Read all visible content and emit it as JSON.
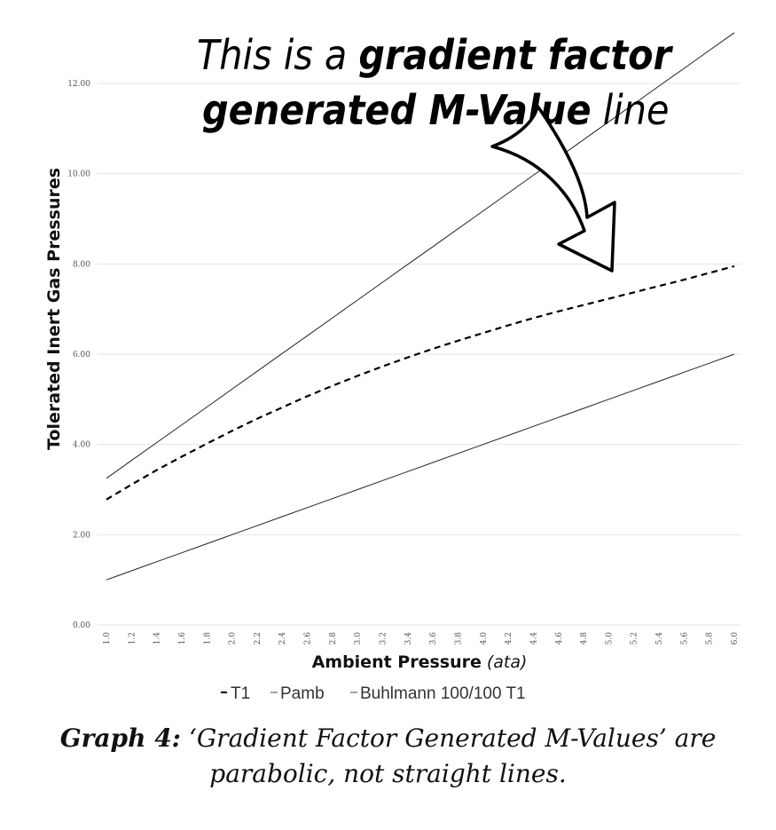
{
  "chart_data": {
    "type": "line",
    "x": [
      1.0,
      1.2,
      1.4,
      1.6,
      1.8,
      2.0,
      2.2,
      2.4,
      2.6,
      2.8,
      3.0,
      3.2,
      3.4,
      3.6,
      3.8,
      4.0,
      4.2,
      4.4,
      4.6,
      4.8,
      5.0,
      5.2,
      5.4,
      5.6,
      5.8,
      6.0
    ],
    "x_tick_labels": [
      "1.0",
      "1.2",
      "1.4",
      "1.6",
      "1.8",
      "2.0",
      "2.2",
      "2.4",
      "2.6",
      "2.8",
      "3.0",
      "3.2",
      "3.4",
      "3.6",
      "3.8",
      "4.0",
      "4.2",
      "4.4",
      "4.6",
      "4.8",
      "5.0",
      "5.2",
      "5.4",
      "5.6",
      "5.8",
      "6.0"
    ],
    "y_tick_labels": [
      "0.00",
      "2.00",
      "4.00",
      "6.00",
      "8.00",
      "10.00",
      "12.00"
    ],
    "y_ticks": [
      0,
      2,
      4,
      6,
      8,
      10,
      12
    ],
    "xlim": [
      1.0,
      6.0
    ],
    "ylim": [
      0,
      12
    ],
    "xlabel": "Ambient Pressure",
    "xlabel_unit": "(ata)",
    "ylabel": "Tolerated Inert Gas Pressures",
    "grid": "horizontal",
    "legend_position": "bottom",
    "series": [
      {
        "name": "T1",
        "style": "dashed",
        "color": "#000000",
        "values": [
          2.78,
          3.11,
          3.43,
          3.73,
          4.02,
          4.3,
          4.57,
          4.82,
          5.07,
          5.3,
          5.52,
          5.73,
          5.93,
          6.12,
          6.3,
          6.47,
          6.64,
          6.8,
          6.95,
          7.09,
          7.23,
          7.37,
          7.51,
          7.65,
          7.8,
          7.95
        ]
      },
      {
        "name": "Pamb",
        "style": "solid",
        "color": "#222222",
        "values": [
          1.0,
          1.2,
          1.4,
          1.6,
          1.8,
          2.0,
          2.2,
          2.4,
          2.6,
          2.8,
          3.0,
          3.2,
          3.4,
          3.6,
          3.8,
          4.0,
          4.2,
          4.4,
          4.6,
          4.8,
          5.0,
          5.2,
          5.4,
          5.6,
          5.8,
          6.0
        ]
      },
      {
        "name": "Buhlmann 100/100 T1",
        "style": "solid",
        "color": "#222222",
        "values": [
          3.25,
          3.645,
          4.04,
          4.435,
          4.83,
          5.225,
          5.62,
          6.015,
          6.41,
          6.805,
          7.2,
          7.595,
          7.99,
          8.385,
          8.78,
          9.175,
          9.57,
          9.965,
          10.36,
          10.755,
          11.15,
          11.545,
          11.94,
          12.335,
          12.73,
          13.125
        ]
      }
    ],
    "legend": [
      "T1",
      "Pamb",
      "Buhlmann 100/100 T1"
    ],
    "annotation": {
      "line1_normal": "This is a ",
      "line1_bold": "gradient factor",
      "line2_bold": "generated M-Value",
      "line2_normal": " line"
    }
  },
  "caption": {
    "label": "Graph 4:",
    "text": " ‘Gradient Factor Generated M-Values’ are parabolic, not straight lines."
  },
  "colors": {
    "grid": "#e6e6e6",
    "line": "#000000",
    "text": "#111111"
  }
}
